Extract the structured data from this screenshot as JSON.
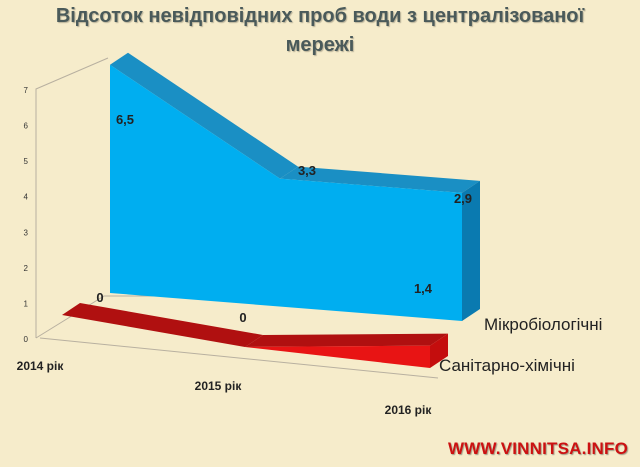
{
  "chart_data": {
    "type": "area",
    "title": "Відсоток невідповідних  проб води з централізованої мережі",
    "categories": [
      "2014 рік",
      "2015 рік",
      "2016 рік"
    ],
    "series": [
      {
        "name": "Мікробіологічні",
        "values": [
          6.5,
          3.3,
          2.9
        ],
        "labels": [
          "6,5",
          "3,3",
          "2,9"
        ],
        "color": "#00aef0"
      },
      {
        "name": "Санітарно-хімічні",
        "values": [
          0,
          0,
          1.4
        ],
        "labels": [
          "0",
          "0",
          "1,4"
        ],
        "color": "#e81414"
      }
    ],
    "yticks": [
      "0",
      "1",
      "2",
      "3",
      "4",
      "5",
      "6",
      "7"
    ],
    "ylim": [
      0,
      7
    ],
    "grid": false,
    "legend_placement": "right"
  },
  "watermark": "WWW.VINNITSA.INFO",
  "colors": {
    "background": "#f6eccb",
    "blue": "#00aef0",
    "red": "#e81414",
    "watermark": "#cc1111"
  }
}
